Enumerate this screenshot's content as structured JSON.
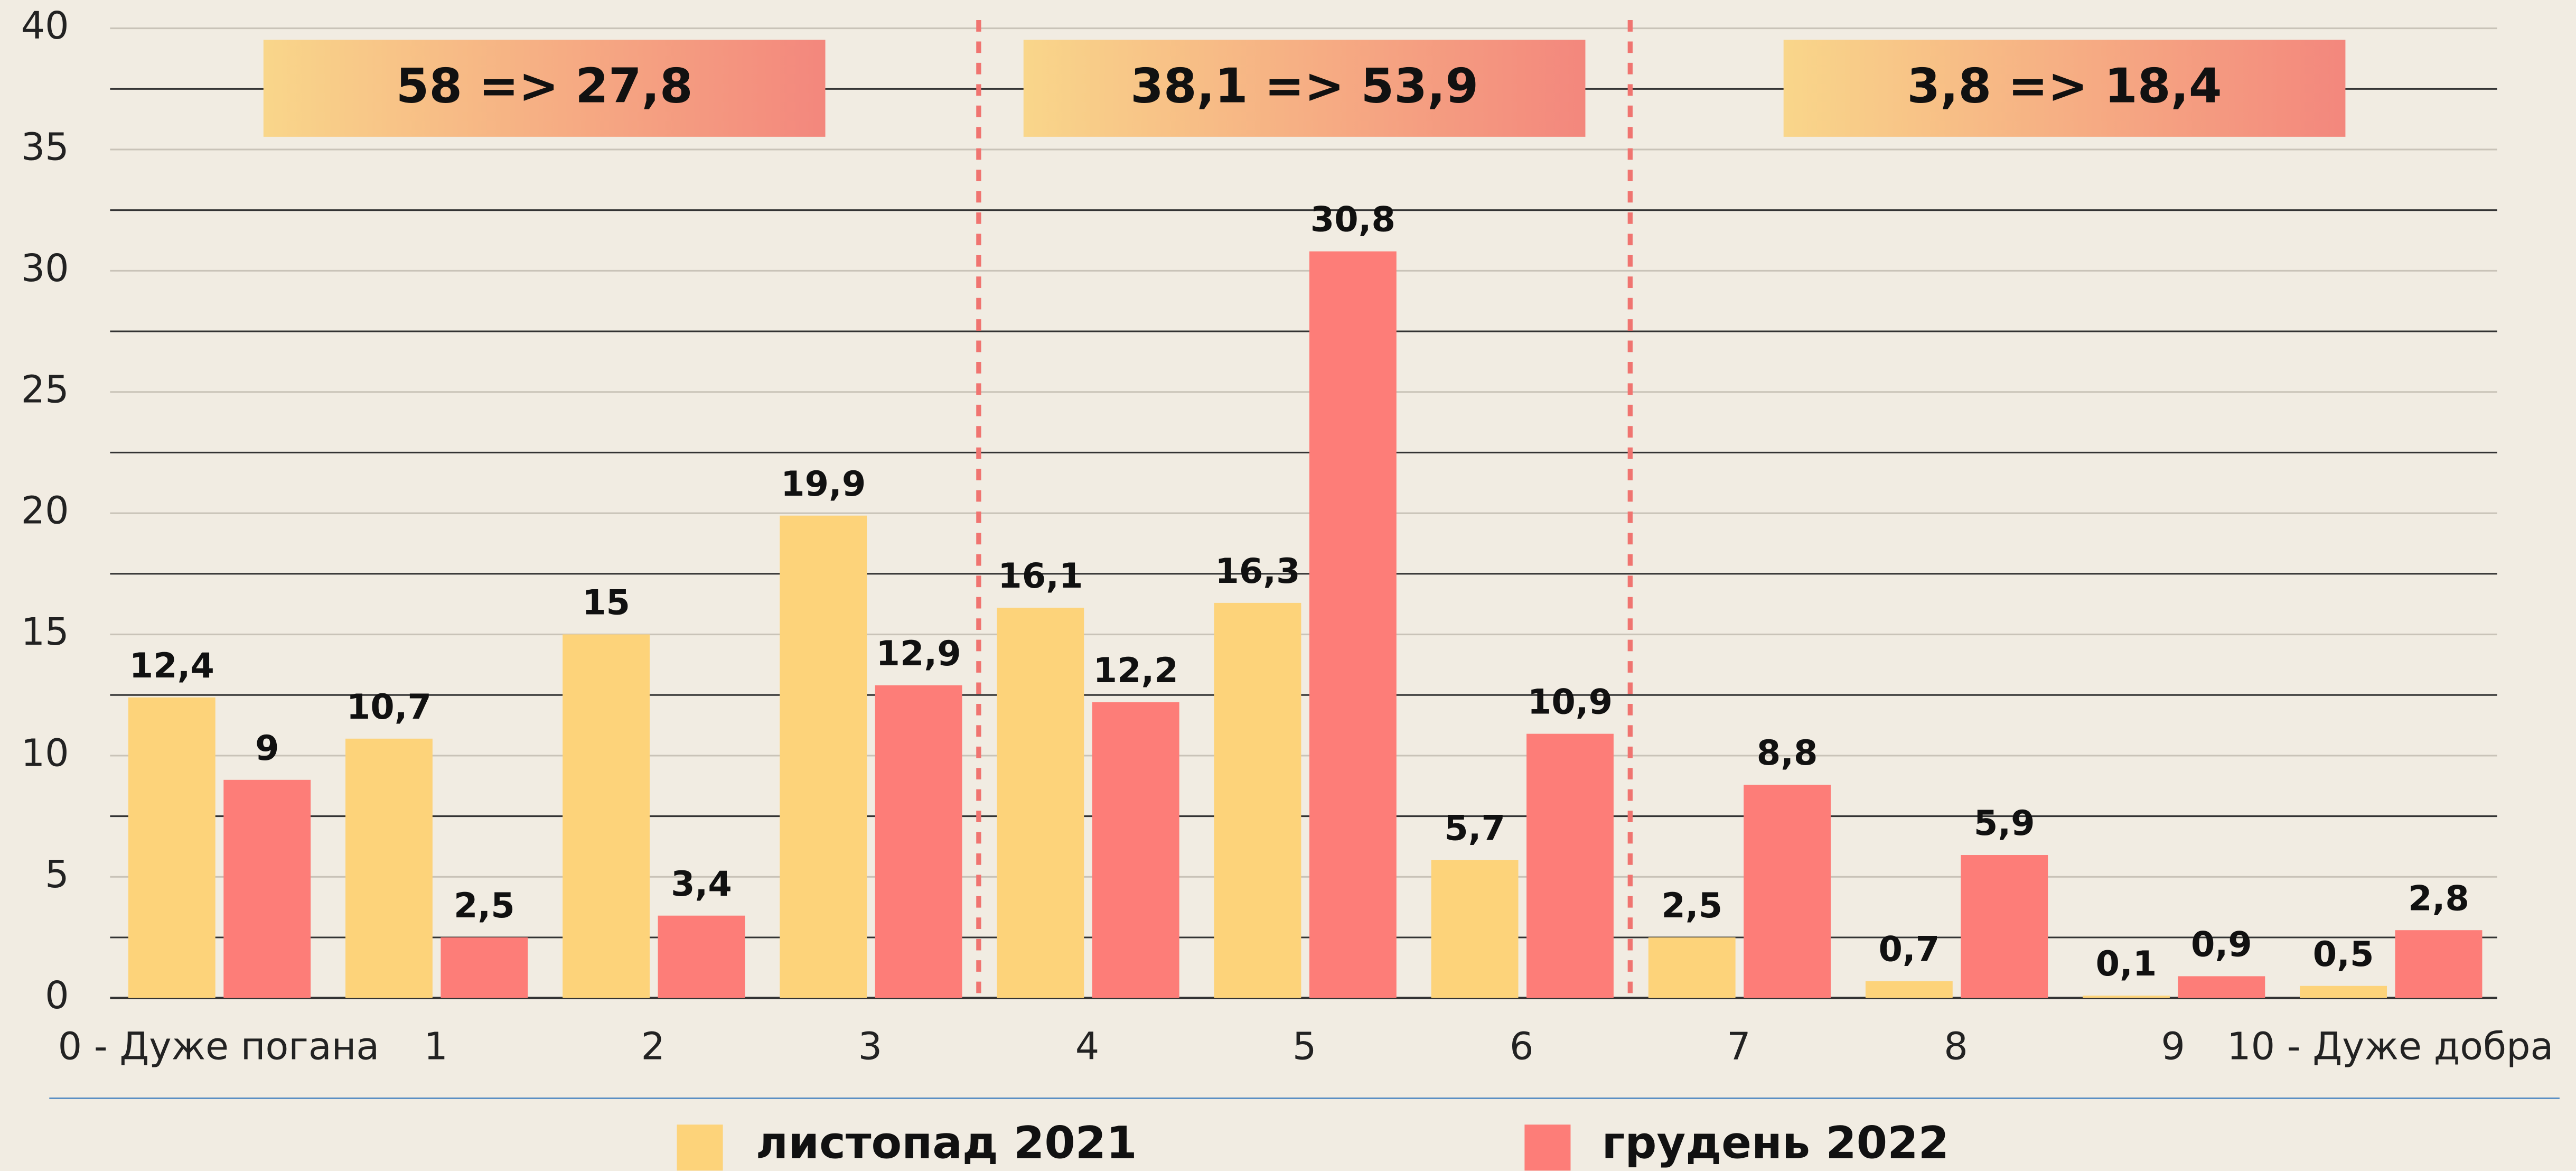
{
  "chart_data": {
    "type": "bar",
    "categories": [
      "0 - Дуже погана",
      "1",
      "2",
      "3",
      "4",
      "5",
      "6",
      "7",
      "8",
      "9",
      "10 - Дуже добра"
    ],
    "series": [
      {
        "name": "листопад 2021",
        "color": "#fdd37a",
        "values": [
          12.4,
          10.7,
          15,
          19.9,
          16.1,
          16.3,
          5.7,
          2.5,
          0.7,
          0.1,
          0.5
        ],
        "value_labels": [
          "12,4",
          "10,7",
          "15",
          "19,9",
          "16,1",
          "16,3",
          "5,7",
          "2,5",
          "0,7",
          "0,1",
          "0,5"
        ]
      },
      {
        "name": "грудень 2022",
        "color": "#fd7d78",
        "values": [
          9,
          2.5,
          3.4,
          12.9,
          12.2,
          30.8,
          10.9,
          8.8,
          5.9,
          0.9,
          2.8
        ],
        "value_labels": [
          "9",
          "2,5",
          "3,4",
          "12,9",
          "12,2",
          "30,8",
          "10,9",
          "8,8",
          "5,9",
          "0,9",
          "2,8"
        ]
      }
    ],
    "annotations": [
      "58 => 27,8",
      "38,1 => 53,9",
      "3,8 => 18,4"
    ],
    "ylim": [
      0,
      40
    ],
    "yticks": [
      0,
      5,
      10,
      15,
      20,
      25,
      30,
      35,
      40
    ],
    "grid": true,
    "legend": "bottom"
  }
}
